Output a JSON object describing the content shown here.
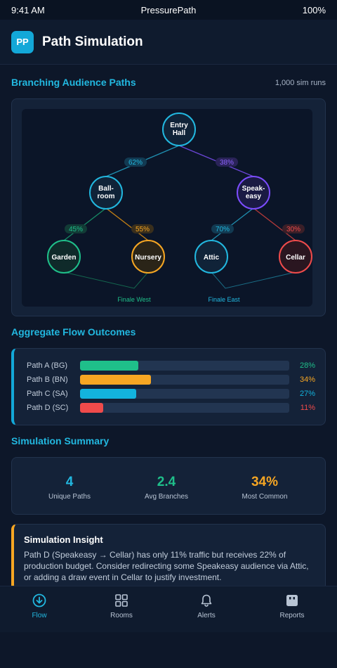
{
  "status_bar": {
    "time": "9:41 AM",
    "carrier": "PressurePath",
    "battery": "100%"
  },
  "header": {
    "logo": "PP",
    "title": "Path Simulation"
  },
  "tree": {
    "title": "Branching Audience Paths",
    "meta": "1,000 sim runs",
    "nodes": {
      "entry": {
        "line1": "Entry",
        "line2": "Hall",
        "color": "#22b8e0"
      },
      "ballroom": {
        "line1": "Ball-",
        "line2": "room",
        "color": "#22b8e0"
      },
      "speakeasy": {
        "line1": "Speak-",
        "line2": "easy",
        "color": "#7c4dff"
      },
      "garden": {
        "label": "Garden",
        "color": "#1fbf8a"
      },
      "nursery": {
        "label": "Nursery",
        "color": "#f6a623"
      },
      "attic": {
        "label": "Attic",
        "color": "#22b8e0"
      },
      "cellar": {
        "label": "Cellar",
        "color": "#ef4b4b"
      }
    },
    "edges": {
      "entry_ballroom": "62%",
      "entry_speakeasy": "38%",
      "ballroom_garden": "45%",
      "ballroom_nursery": "55%",
      "speakeasy_attic": "70%",
      "speakeasy_cellar": "30%"
    },
    "finales": {
      "west": "Finale West",
      "east": "Finale East"
    }
  },
  "flow": {
    "title": "Aggregate Flow Outcomes",
    "rows": [
      {
        "label": "Path A (BG)",
        "value": 28,
        "pct": "28%",
        "color": "#1fbf8a"
      },
      {
        "label": "Path B (BN)",
        "value": 34,
        "pct": "34%",
        "color": "#f6a623"
      },
      {
        "label": "Path C (SA)",
        "value": 27,
        "pct": "27%",
        "color": "#13b3dd"
      },
      {
        "label": "Path D (SC)",
        "value": 11,
        "pct": "11%",
        "color": "#ef4b4b"
      }
    ]
  },
  "summary": {
    "title": "Simulation Summary",
    "stats": [
      {
        "value": "4",
        "label": "Unique Paths",
        "color": "#22b8e0"
      },
      {
        "value": "2.4",
        "label": "Avg Branches",
        "color": "#1fbf8a"
      },
      {
        "value": "34%",
        "label": "Most Common",
        "color": "#f6a623"
      }
    ]
  },
  "insight": {
    "title": "Simulation Insight",
    "body": "Path D (Speakeasy → Cellar) has only 11% traffic but receives 22% of production budget. Consider redirecting some Speakeasy audience via Attic, or adding a draw event in Cellar to justify investment."
  },
  "nav": {
    "items": [
      {
        "label": "Flow",
        "icon": "flow-icon",
        "active": true
      },
      {
        "label": "Rooms",
        "icon": "rooms-icon",
        "active": false
      },
      {
        "label": "Alerts",
        "icon": "bell-icon",
        "active": false
      },
      {
        "label": "Reports",
        "icon": "reports-icon",
        "active": false
      }
    ]
  }
}
